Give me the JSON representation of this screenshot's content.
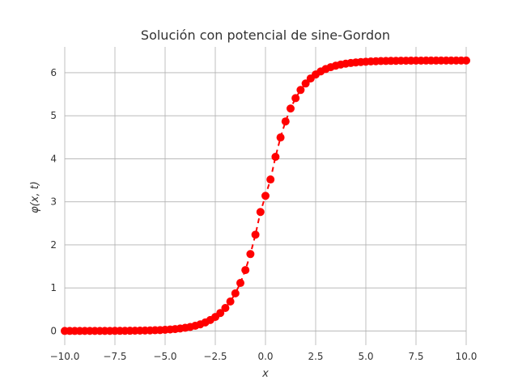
{
  "chart_data": {
    "type": "line",
    "title": "Solución con potencial de sine-Gordon",
    "xlabel": "x",
    "ylabel": "φ(x, t)",
    "xlim": [
      -10,
      10
    ],
    "ylim": [
      -0.33,
      6.6
    ],
    "x_ticks": [
      -10,
      -7.5,
      -5,
      -2.5,
      0,
      2.5,
      5,
      7.5,
      10
    ],
    "x_tick_labels": [
      "−10.0",
      "−7.5",
      "−5.0",
      "−2.5",
      "0.0",
      "2.5",
      "5.0",
      "7.5",
      "10.0"
    ],
    "y_ticks": [
      0,
      1,
      2,
      3,
      4,
      5,
      6
    ],
    "y_tick_labels": [
      "0",
      "1",
      "2",
      "3",
      "4",
      "5",
      "6"
    ],
    "grid": true,
    "series": [
      {
        "color": "#ff0000",
        "line_style": "dashed",
        "marker": "circle",
        "x": [
          -10.0,
          -9.75,
          -9.5,
          -9.25,
          -9.0,
          -8.75,
          -8.5,
          -8.25,
          -8.0,
          -7.75,
          -7.5,
          -7.25,
          -7.0,
          -6.75,
          -6.5,
          -6.25,
          -6.0,
          -5.75,
          -5.5,
          -5.25,
          -5.0,
          -4.75,
          -4.5,
          -4.25,
          -4.0,
          -3.75,
          -3.5,
          -3.25,
          -3.0,
          -2.75,
          -2.5,
          -2.25,
          -2.0,
          -1.75,
          -1.5,
          -1.25,
          -1.0,
          -0.75,
          -0.5,
          -0.25,
          0.0,
          0.25,
          0.5,
          0.75,
          1.0,
          1.25,
          1.5,
          1.75,
          2.0,
          2.25,
          2.5,
          2.75,
          3.0,
          3.25,
          3.5,
          3.75,
          4.0,
          4.25,
          4.5,
          4.75,
          5.0,
          5.25,
          5.5,
          5.75,
          6.0,
          6.25,
          6.5,
          6.75,
          7.0,
          7.25,
          7.5,
          7.75,
          8.0,
          8.25,
          8.5,
          8.75,
          9.0,
          9.25,
          9.5,
          9.75,
          10.0
        ],
        "y": [
          0.0002,
          0.0002,
          0.0003,
          0.0004,
          0.0005,
          0.0006,
          0.0008,
          0.001,
          0.0013,
          0.0017,
          0.0022,
          0.0028,
          0.0036,
          0.0047,
          0.006,
          0.0077,
          0.0099,
          0.0127,
          0.0163,
          0.0209,
          0.0268,
          0.0345,
          0.0443,
          0.0568,
          0.073,
          0.0937,
          0.12,
          0.154,
          0.198,
          0.254,
          0.325,
          0.417,
          0.534,
          0.684,
          0.874,
          1.115,
          1.415,
          1.787,
          2.237,
          2.764,
          3.14,
          3.519,
          4.046,
          4.496,
          4.868,
          5.168,
          5.409,
          5.599,
          5.749,
          5.866,
          5.958,
          6.029,
          6.085,
          6.129,
          6.163,
          6.19,
          6.21,
          6.226,
          6.239,
          6.249,
          6.256,
          6.262,
          6.267,
          6.271,
          6.273,
          6.275,
          6.277,
          6.278,
          6.279,
          6.28,
          6.281,
          6.281,
          6.282,
          6.282,
          6.282,
          6.283,
          6.283,
          6.283,
          6.283,
          6.283,
          6.283
        ]
      }
    ]
  }
}
